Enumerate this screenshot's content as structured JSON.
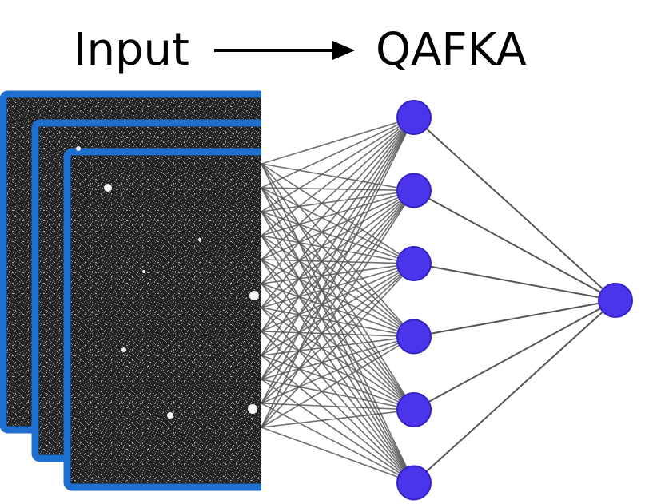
{
  "labels": {
    "input": "Input",
    "model": "QAFKA"
  },
  "network": {
    "input_frames": 3,
    "hidden_neurons": 6,
    "output_neurons": 1
  },
  "colors": {
    "frame_border": "#1f6fd1",
    "frame_fill": "#1c1c1c",
    "neuron": "#4a35ea",
    "neuron_stroke": "#3522c4",
    "edge": "#555555",
    "arrow": "#000000",
    "text": "#000000"
  }
}
